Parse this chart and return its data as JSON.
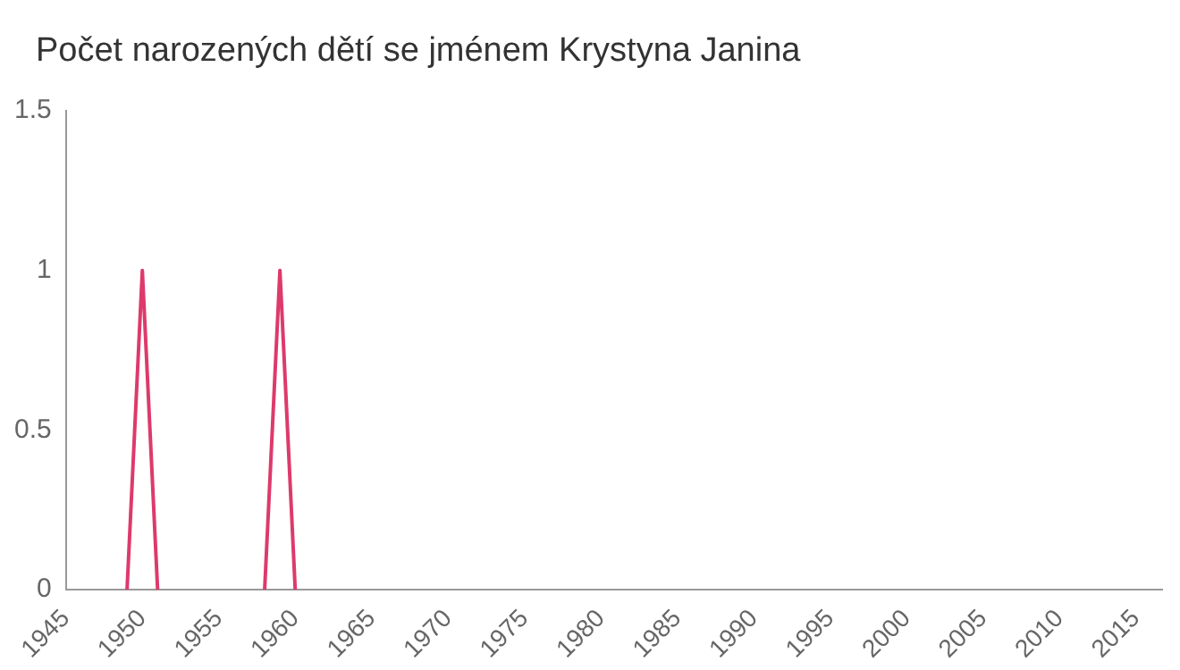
{
  "chart_data": {
    "type": "line",
    "title": "Počet narozených dětí se jménem Krystyna Janina",
    "x": [
      1949,
      1950,
      1951,
      1952,
      1958,
      1959,
      1960
    ],
    "series": [
      {
        "color": "#dd3a6c",
        "values": [
          0,
          1,
          0,
          null,
          0,
          1,
          0
        ]
      }
    ],
    "xlim": [
      1945,
      2016.7
    ],
    "xticks": [
      1945,
      1950,
      1955,
      1960,
      1965,
      1970,
      1975,
      1980,
      1985,
      1990,
      1995,
      2000,
      2005,
      2010,
      2015
    ],
    "ylim": [
      0,
      1.5
    ],
    "yticks": [
      0,
      0.5,
      1,
      1.5
    ],
    "grid": false,
    "legend": false,
    "marker": "none",
    "line_style": "solid"
  }
}
